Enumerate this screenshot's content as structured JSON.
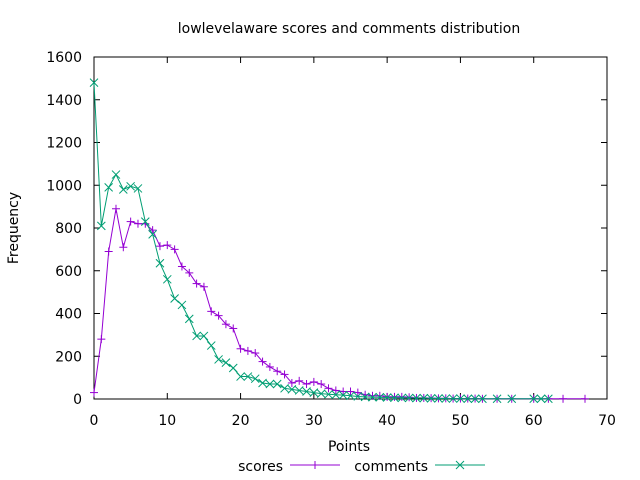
{
  "chart_data": {
    "type": "line",
    "title": "lowlevelaware scores and comments distribution",
    "xlabel": "Points",
    "ylabel": "Frequency",
    "xlim": [
      0,
      70
    ],
    "ylim": [
      0,
      1600
    ],
    "xticks": [
      0,
      10,
      20,
      30,
      40,
      50,
      60,
      70
    ],
    "yticks": [
      0,
      200,
      400,
      600,
      800,
      1000,
      1200,
      1400,
      1600
    ],
    "grid": false,
    "legend_position": "bottom",
    "series": [
      {
        "name": "scores",
        "color": "#9400d3",
        "marker": "plus",
        "x": [
          0,
          1,
          2,
          3,
          4,
          5,
          6,
          7,
          8,
          9,
          10,
          11,
          12,
          13,
          14,
          15,
          16,
          17,
          18,
          19,
          20,
          21,
          22,
          23,
          24,
          25,
          26,
          27,
          28,
          29,
          30,
          31,
          32,
          33,
          34,
          35,
          36,
          37,
          38,
          39,
          40,
          41,
          42,
          43,
          44,
          45,
          46,
          47,
          48,
          49,
          50,
          51,
          52,
          53,
          55,
          57,
          60,
          62,
          64,
          67
        ],
        "values": [
          30,
          280,
          690,
          890,
          710,
          830,
          820,
          820,
          790,
          715,
          720,
          700,
          620,
          590,
          540,
          525,
          410,
          390,
          350,
          330,
          235,
          225,
          215,
          175,
          150,
          130,
          115,
          75,
          85,
          70,
          80,
          70,
          50,
          40,
          35,
          35,
          30,
          20,
          15,
          15,
          10,
          10,
          10,
          8,
          5,
          5,
          4,
          3,
          3,
          2,
          2,
          2,
          2,
          1,
          1,
          1,
          1,
          1,
          1,
          1
        ]
      },
      {
        "name": "comments",
        "color": "#009e73",
        "marker": "cross",
        "x": [
          0,
          1,
          2,
          3,
          4,
          5,
          6,
          7,
          8,
          9,
          10,
          11,
          12,
          13,
          14,
          15,
          16,
          17,
          18,
          19,
          20,
          21,
          22,
          23,
          24,
          25,
          26,
          27,
          28,
          29,
          30,
          31,
          32,
          33,
          34,
          35,
          36,
          37,
          38,
          39,
          40,
          41,
          42,
          43,
          44,
          45,
          46,
          47,
          48,
          49,
          50,
          51,
          52,
          53,
          55,
          57,
          60,
          61,
          62
        ],
        "values": [
          1480,
          810,
          990,
          1050,
          980,
          995,
          985,
          830,
          770,
          635,
          560,
          470,
          440,
          375,
          295,
          295,
          250,
          185,
          170,
          145,
          105,
          105,
          95,
          75,
          70,
          70,
          50,
          45,
          40,
          35,
          30,
          25,
          22,
          20,
          18,
          15,
          12,
          10,
          8,
          8,
          7,
          6,
          5,
          5,
          4,
          4,
          3,
          3,
          2,
          2,
          2,
          1,
          1,
          1,
          1,
          1,
          1,
          1,
          1
        ]
      }
    ]
  }
}
